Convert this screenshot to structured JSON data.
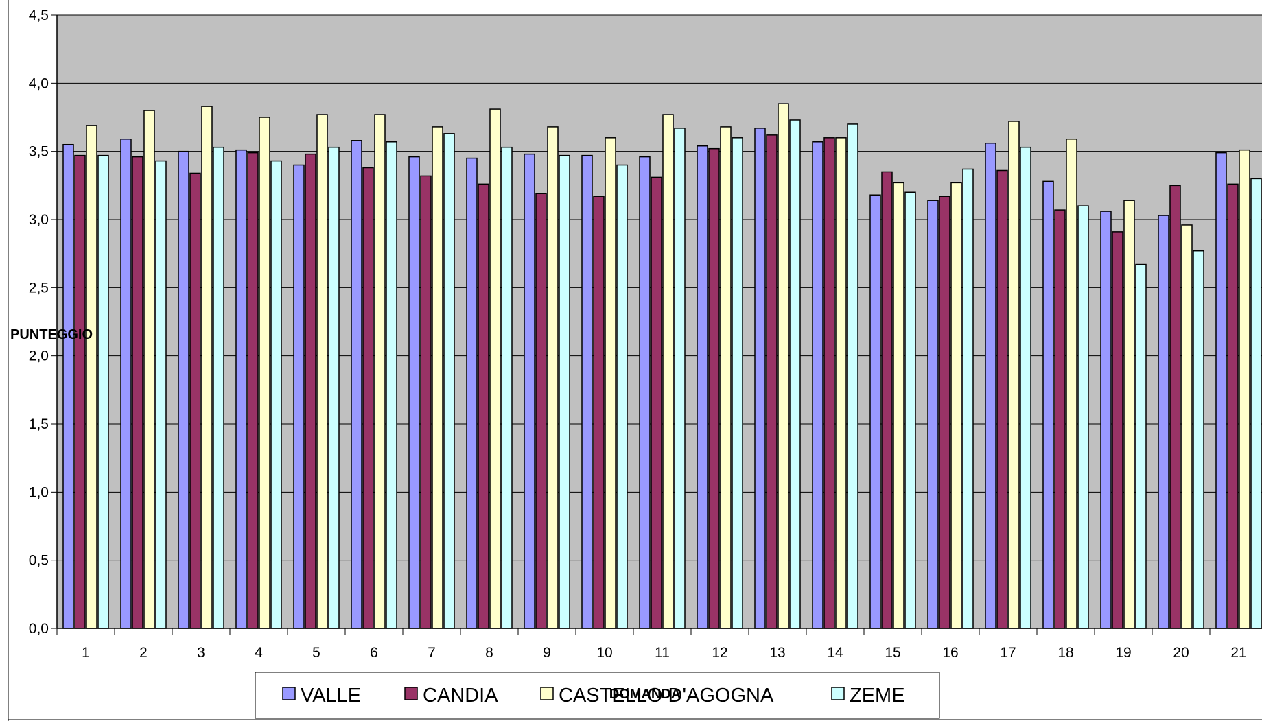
{
  "chart_data": {
    "type": "bar",
    "title": "",
    "xlabel": "DOMANDA",
    "ylabel": "PUNTEGGIO",
    "ylim": [
      0,
      4.5
    ],
    "yticks": [
      "0,0",
      "0,5",
      "1,0",
      "1,5",
      "2,0",
      "2,5",
      "3,0",
      "3,5",
      "4,0",
      "4,5"
    ],
    "categories": [
      "1",
      "2",
      "3",
      "4",
      "5",
      "6",
      "7",
      "8",
      "9",
      "10",
      "11",
      "12",
      "13",
      "14",
      "15",
      "16",
      "17",
      "18",
      "19",
      "20",
      "21"
    ],
    "grid": true,
    "legend_position": "bottom",
    "plot_background": "#c0c0c0",
    "series": [
      {
        "name": "VALLE",
        "color": "#9999ff",
        "values": [
          3.55,
          3.59,
          3.5,
          3.51,
          3.4,
          3.58,
          3.46,
          3.45,
          3.48,
          3.47,
          3.46,
          3.54,
          3.67,
          3.57,
          3.18,
          3.14,
          3.56,
          3.28,
          3.06,
          3.03,
          3.49
        ]
      },
      {
        "name": "CANDIA",
        "color": "#993366",
        "values": [
          3.47,
          3.46,
          3.34,
          3.49,
          3.48,
          3.38,
          3.32,
          3.26,
          3.19,
          3.17,
          3.31,
          3.52,
          3.62,
          3.6,
          3.35,
          3.17,
          3.36,
          3.07,
          2.91,
          3.25,
          3.26
        ]
      },
      {
        "name": "CASTELLO D'AGOGNA",
        "color": "#ffffcc",
        "values": [
          3.69,
          3.8,
          3.83,
          3.75,
          3.77,
          3.77,
          3.68,
          3.81,
          3.68,
          3.6,
          3.77,
          3.68,
          3.85,
          3.6,
          3.27,
          3.27,
          3.72,
          3.59,
          3.14,
          2.96,
          3.51
        ]
      },
      {
        "name": "ZEME",
        "color": "#ccffff",
        "values": [
          3.47,
          3.43,
          3.53,
          3.43,
          3.53,
          3.57,
          3.63,
          3.53,
          3.47,
          3.4,
          3.67,
          3.6,
          3.73,
          3.7,
          3.2,
          3.37,
          3.53,
          3.1,
          2.67,
          2.77,
          3.3
        ]
      }
    ]
  }
}
